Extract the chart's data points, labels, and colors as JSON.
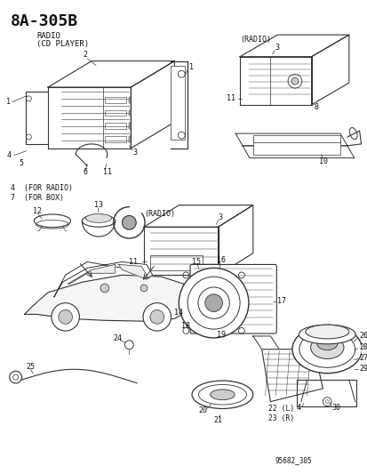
{
  "title": "8A–305B",
  "subtitle_line1": "RADIO",
  "subtitle_line2": "(CD PLAYER)",
  "diagram_id": "95682_305",
  "bg_color": "#ffffff",
  "line_color": "#333333",
  "text_color": "#111111",
  "fig_width": 4.14,
  "fig_height": 5.33,
  "dpi": 100
}
